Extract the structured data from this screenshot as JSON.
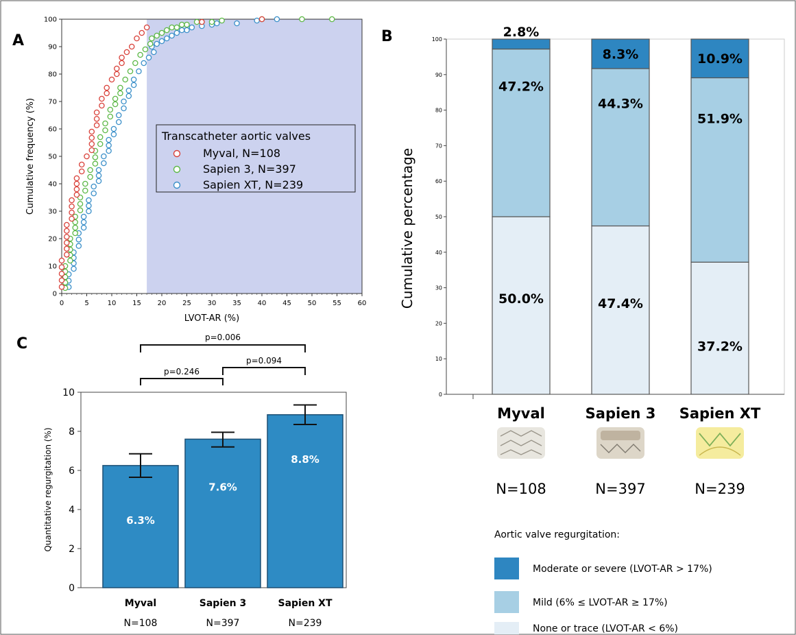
{
  "panelA": {
    "label": "A",
    "ylabel": "Cumulative frequency (%)",
    "xlabel": "LVOT-AR (%)",
    "xticks": [
      "0",
      "5",
      "10",
      "15",
      "20",
      "25",
      "30",
      "35",
      "40",
      "45",
      "50",
      "55",
      "60"
    ],
    "yticks": [
      "0",
      "10",
      "20",
      "30",
      "40",
      "50",
      "60",
      "70",
      "80",
      "90",
      "100"
    ],
    "legend_title": "Transcatheter aortic valves",
    "legend": [
      "Myval, N=108",
      "Sapien 3, N=397",
      "Sapien XT, N=239"
    ]
  },
  "panelB": {
    "label": "B",
    "ylabel": "Cumulative percentage",
    "yticks": [
      "0",
      "10",
      "20",
      "30",
      "40",
      "50",
      "60",
      "70",
      "80",
      "90",
      "100"
    ],
    "categories": [
      "Myval",
      "Sapien 3",
      "Sapien XT"
    ],
    "n_labels": [
      "N=108",
      "N=397",
      "N=239"
    ],
    "seg_labels": {
      "none": [
        "50.0%",
        "47.4%",
        "37.2%"
      ],
      "mild": [
        "47.2%",
        "44.3%",
        "51.9%"
      ],
      "moderate": [
        "2.8%",
        "8.3%",
        "10.9%"
      ]
    },
    "legend_title": "Aortic valve regurgitation:",
    "legend": [
      "Moderate or severe (LVOT-AR > 17%)",
      "Mild (6% ≤ LVOT-AR ≥ 17%)",
      "None or trace (LVOT-AR < 6%)"
    ]
  },
  "panelC": {
    "label": "C",
    "ylabel": "Quantitative regurgitation (%)",
    "yticks": [
      "0",
      "2",
      "4",
      "6",
      "8",
      "10"
    ],
    "categories": [
      "Myval",
      "Sapien 3",
      "Sapien XT"
    ],
    "n_labels": [
      "N=108",
      "N=397",
      "N=239"
    ],
    "bar_labels": [
      "6.3%",
      "7.6%",
      "8.8%"
    ],
    "pvalues": [
      "p=0.246",
      "p=0.094",
      "p=0.006"
    ]
  },
  "colors": {
    "myval": "#d9413a",
    "sapien3": "#5cb846",
    "sapienxt": "#3a8fc9",
    "shade": "#ccd2ef",
    "moderate": "#2e86c1",
    "mild": "#a7cfe4",
    "none": "#e4eef6",
    "barC": "#2e8bc4"
  },
  "chart_data": [
    {
      "type": "scatter",
      "xlim": [
        0,
        60
      ],
      "ylim": [
        0,
        100
      ],
      "shaded_region_x": [
        17,
        60
      ],
      "series": [
        {
          "name": "Myval, N=108",
          "x": [
            0,
            1,
            2,
            3,
            4,
            5,
            6,
            7,
            8,
            9,
            10,
            11,
            12,
            13,
            14,
            15,
            16,
            17,
            28,
            40
          ],
          "y": [
            12,
            25,
            34,
            42,
            47,
            50,
            59,
            66,
            71,
            75,
            78,
            82,
            86,
            88,
            90,
            93,
            95,
            97,
            99,
            100
          ]
        },
        {
          "name": "Sapien 3, N=397",
          "x": [
            0,
            1,
            2,
            3,
            4,
            5,
            6,
            7,
            8,
            9,
            10,
            11,
            12,
            13,
            14,
            15,
            16,
            17,
            18,
            19,
            20,
            21,
            22,
            23,
            24,
            25,
            27,
            28,
            30,
            32,
            40,
            48,
            54
          ],
          "y": [
            10,
            20,
            28,
            35,
            40,
            45,
            52,
            57,
            62,
            67,
            71,
            75,
            78,
            81,
            84,
            87,
            89,
            91,
            93,
            94,
            95,
            96,
            97,
            97,
            98,
            98,
            99,
            99,
            99,
            99.5,
            100,
            100,
            100
          ]
        },
        {
          "name": "Sapien XT, N=239",
          "x": [
            0,
            1,
            2,
            3,
            4,
            5,
            6,
            7,
            8,
            9,
            10,
            11,
            12,
            13,
            14,
            15,
            16,
            17,
            18,
            19,
            20,
            21,
            22,
            23,
            24,
            25,
            26,
            28,
            30,
            31,
            35,
            39,
            43
          ],
          "y": [
            7,
            15,
            22,
            28,
            34,
            39,
            45,
            50,
            56,
            60,
            65,
            70,
            74,
            78,
            81,
            84,
            86,
            88,
            90,
            91,
            92,
            93,
            94,
            95,
            96,
            96,
            97,
            97.5,
            98,
            98.5,
            98.5,
            99.5,
            100
          ]
        }
      ]
    },
    {
      "type": "bar",
      "stacked": true,
      "categories": [
        "Myval",
        "Sapien 3",
        "Sapien XT"
      ],
      "ylim": [
        0,
        100
      ],
      "series": [
        {
          "name": "None or trace (LVOT-AR < 6%)",
          "values": [
            50.0,
            47.4,
            37.2
          ]
        },
        {
          "name": "Mild (6% ≤ LVOT-AR ≥ 17%)",
          "values": [
            47.2,
            44.3,
            51.9
          ]
        },
        {
          "name": "Moderate or severe (LVOT-AR > 17%)",
          "values": [
            2.8,
            8.3,
            10.9
          ]
        }
      ]
    },
    {
      "type": "bar",
      "categories": [
        "Myval",
        "Sapien 3",
        "Sapien XT"
      ],
      "values": [
        6.25,
        7.6,
        8.85
      ],
      "errors": [
        [
          5.65,
          6.85
        ],
        [
          7.2,
          7.95
        ],
        [
          8.35,
          9.35
        ]
      ],
      "ylim": [
        0,
        10
      ],
      "comparisons": [
        {
          "pair": [
            "Myval",
            "Sapien 3"
          ],
          "p": "p=0.246"
        },
        {
          "pair": [
            "Sapien 3",
            "Sapien XT"
          ],
          "p": "p=0.094"
        },
        {
          "pair": [
            "Myval",
            "Sapien XT"
          ],
          "p": "p=0.006"
        }
      ]
    }
  ]
}
